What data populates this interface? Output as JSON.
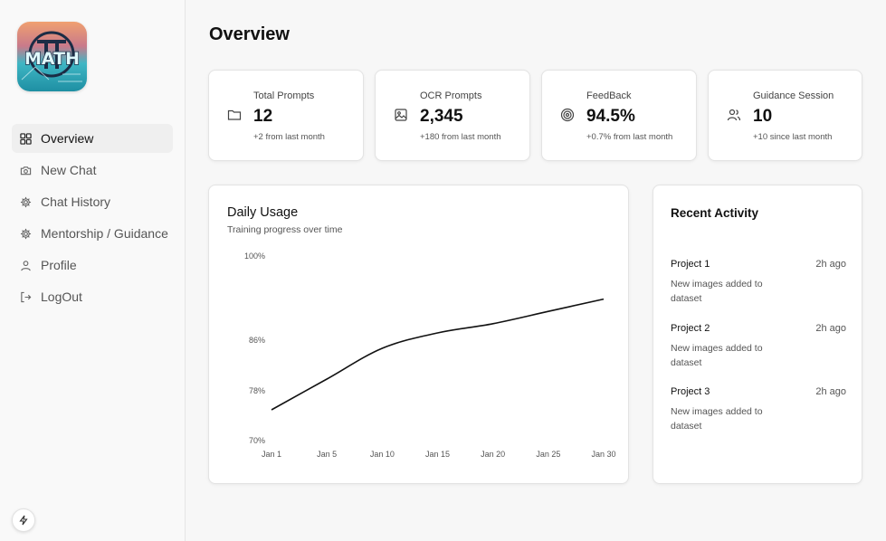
{
  "sidebar": {
    "logo_text": "MATH",
    "nav": [
      {
        "label": "Overview",
        "icon": "grid-icon",
        "active": true
      },
      {
        "label": "New Chat",
        "icon": "camera-icon",
        "active": false
      },
      {
        "label": "Chat History",
        "icon": "gear-icon",
        "active": false
      },
      {
        "label": "Mentorship / Guidance",
        "icon": "gear-icon",
        "active": false
      },
      {
        "label": "Profile",
        "icon": "user-icon",
        "active": false
      },
      {
        "label": "LogOut",
        "icon": "logout-icon",
        "active": false
      }
    ]
  },
  "page": {
    "title": "Overview"
  },
  "stats": [
    {
      "label": "Total Prompts",
      "value": "12",
      "sub": "+2 from last month",
      "icon": "folder-icon"
    },
    {
      "label": "OCR Prompts",
      "value": "2,345",
      "sub": "+180 from last month",
      "icon": "image-icon"
    },
    {
      "label": "FeedBack",
      "value": "94.5%",
      "sub": "+0.7% from last month",
      "icon": "target-icon"
    },
    {
      "label": "Guidance Session",
      "value": "10",
      "sub": "+10 since last month",
      "icon": "users-icon"
    }
  ],
  "chart_data": {
    "type": "line",
    "title": "Daily Usage",
    "subtitle": "Training progress over time",
    "categories": [
      "Jan 1",
      "Jan 5",
      "Jan 10",
      "Jan 15",
      "Jan 20",
      "Jan 25",
      "Jan 30"
    ],
    "y_ticks": [
      "100%",
      "86%",
      "78%",
      "70%"
    ],
    "series": [
      {
        "name": "Usage",
        "values": [
          75,
          80,
          85,
          87.5,
          89,
          91,
          93
        ]
      }
    ],
    "ylim": [
      70,
      100
    ]
  },
  "activity": {
    "title": "Recent Activity",
    "items": [
      {
        "project": "Project 1",
        "time": "2h ago",
        "desc": "New images added to dataset"
      },
      {
        "project": "Project 2",
        "time": "2h ago",
        "desc": "New images added to dataset"
      },
      {
        "project": "Project 3",
        "time": "2h ago",
        "desc": "New images added to dataset"
      }
    ]
  }
}
